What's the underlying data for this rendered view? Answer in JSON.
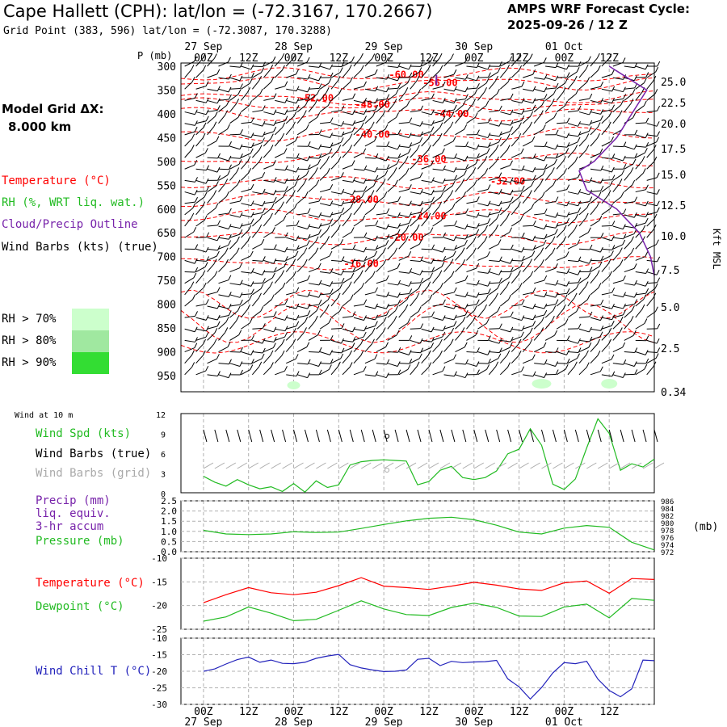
{
  "header": {
    "title": "Cape Hallett (CPH):  lat/lon = (-72.3167, 170.2667)",
    "grid_point": "Grid Point (383, 596) lat/lon = (-72.3087, 170.3288)",
    "cycle_label": "AMPS WRF Forecast Cycle:",
    "cycle_value": "2025-09-26 / 12  Z",
    "model_grid_label": "Model Grid ΔX:",
    "model_grid_value": "8.000 km"
  },
  "legend": {
    "temperature": "Temperature (°C)",
    "rh": "RH (%, WRT liq. wat.)",
    "cloud": "Cloud/Precip Outline",
    "wind_barbs": "Wind Barbs (kts) (true)",
    "rh_levels": [
      {
        "label": "RH > 70%",
        "color": "#ccffcc"
      },
      {
        "label": "RH > 80%",
        "color": "#a0e8a0"
      },
      {
        "label": "RH > 90%",
        "color": "#33dd33"
      }
    ]
  },
  "colors": {
    "temperature": "#ff0000",
    "rh": "#22bb22",
    "cloud": "#7722aa",
    "wind": "#000000",
    "wind_grid": "#aaaaaa",
    "precip": "#7722aa",
    "pressure": "#22bb22",
    "dewpoint": "#22bb22",
    "windchill": "#2222bb",
    "grid": "#b0b0b0"
  },
  "time_axis": {
    "tick_labels": [
      "00Z",
      "12Z",
      "00Z",
      "12Z",
      "00Z",
      "12Z",
      "00Z",
      "12Z",
      "00Z",
      "12Z"
    ],
    "date_labels": [
      "27 Sep",
      "28 Sep",
      "29 Sep",
      "30 Sep",
      "01 Oct"
    ]
  },
  "chart_data": [
    {
      "type": "line",
      "panel": "cross-section",
      "title": "",
      "ylabel": "P (mb)",
      "y2label": "Kft MSL",
      "pressure_ticks": [
        "300",
        "350",
        "400",
        "450",
        "500",
        "550",
        "600",
        "650",
        "700",
        "750",
        "800",
        "850",
        "900",
        "950"
      ],
      "pressure_values": [
        300,
        350,
        400,
        450,
        500,
        550,
        600,
        650,
        700,
        750,
        800,
        850,
        900,
        950
      ],
      "kft_ticks": [
        "25.0",
        "22.5",
        "20.0",
        "17.5",
        "15.0",
        "12.5",
        "10.0",
        "7.5",
        "5.0",
        "2.5",
        "0.34"
      ],
      "kft_values": [
        25.0,
        22.5,
        20.0,
        17.5,
        15.0,
        12.5,
        10.0,
        7.5,
        5.0,
        2.5,
        0.34
      ],
      "isotherm_labels": [
        {
          "label": "-60.00",
          "value": -60,
          "hour": 18,
          "p": 318
        },
        {
          "label": "-56.00",
          "value": -56,
          "hour": 27,
          "p": 335
        },
        {
          "label": "-52.00",
          "value": -52,
          "hour": -6,
          "p": 367
        },
        {
          "label": "-48.00",
          "value": -48,
          "hour": 9,
          "p": 381
        },
        {
          "label": "-44.00",
          "value": -44,
          "hour": 30,
          "p": 400
        },
        {
          "label": "-40.00",
          "value": -40,
          "hour": 9,
          "p": 443
        },
        {
          "label": "-36.00",
          "value": -36,
          "hour": 24,
          "p": 495
        },
        {
          "label": "-32.00",
          "value": -32,
          "hour": 45,
          "p": 542
        },
        {
          "label": "-28.00",
          "value": -28,
          "hour": 6,
          "p": 580
        },
        {
          "label": "-24.00",
          "value": -24,
          "hour": 24,
          "p": 615
        },
        {
          "label": "-20.00",
          "value": -20,
          "hour": 18,
          "p": 660
        },
        {
          "label": "-16.00",
          "value": -16,
          "hour": 6,
          "p": 715
        }
      ]
    },
    {
      "type": "line",
      "panel": "wind",
      "label_top": "Wind at 10 m",
      "legend": [
        "Wind Spd (kts)",
        "Wind Barbs (true)",
        "Wind Barbs (grid)"
      ],
      "yticks": [
        "12",
        "9",
        "6",
        "3",
        "0"
      ],
      "ylim": [
        0,
        12
      ],
      "x_hours": [
        -36,
        -33,
        -30,
        -27,
        -24,
        -21,
        -18,
        -15,
        -12,
        -9,
        -6,
        -3,
        0,
        3,
        6,
        9,
        12,
        15,
        18,
        21,
        24,
        27,
        30,
        33,
        36,
        39,
        42,
        45,
        48,
        51,
        54,
        57,
        60,
        63,
        66,
        69,
        72,
        75,
        78,
        81,
        84
      ],
      "series": [
        {
          "name": "Wind Spd (kts)",
          "values": [
            2.5,
            1.6,
            1.0,
            2.0,
            1.2,
            0.6,
            0.9,
            0.2,
            1.4,
            0.1,
            1.8,
            0.8,
            1.2,
            4.2,
            4.7,
            4.9,
            5.0,
            4.9,
            4.8,
            1.2,
            1.7,
            3.4,
            4.0,
            2.3,
            2.0,
            2.3,
            3.3,
            5.9,
            6.6,
            9.7,
            7.2,
            1.3,
            0.5,
            2.1,
            6.8,
            11.2,
            9.0,
            3.4,
            4.4,
            3.9,
            5.1
          ]
        }
      ]
    },
    {
      "type": "line",
      "panel": "precip-pressure",
      "legend": [
        "Precip (mm)",
        "liq. equiv.",
        "3-hr accum",
        "Pressure (mb)"
      ],
      "left_ticks": [
        "2.5",
        "2.0",
        "1.5",
        "1.0",
        "0.5",
        "0.0"
      ],
      "ylim": [
        0,
        2.5
      ],
      "right_ticks": [
        "986",
        "984",
        "982",
        "980",
        "978",
        "976",
        "974",
        "972"
      ],
      "ylim_right": [
        972,
        986
      ],
      "right_label": "(mb)",
      "x_hours": [
        -36,
        -30,
        -24,
        -18,
        -12,
        -6,
        0,
        6,
        12,
        18,
        24,
        30,
        36,
        42,
        48,
        54,
        60,
        66,
        72,
        78,
        84
      ],
      "series": [
        {
          "name": "Pressure (mb)",
          "axis": "right",
          "values": [
            977.9,
            976.9,
            976.7,
            976.9,
            977.5,
            977.3,
            977.4,
            978.4,
            979.5,
            980.5,
            981.2,
            981.5,
            980.8,
            979.3,
            977.4,
            976.9,
            978.5,
            979.2,
            978.7,
            974.6,
            972.5
          ]
        },
        {
          "name": "Precip (mm)",
          "axis": "left",
          "values": [
            0,
            0,
            0,
            0,
            0,
            0,
            0,
            0,
            0,
            0,
            0,
            0,
            0,
            0,
            0,
            0,
            0,
            0,
            0,
            0,
            0
          ]
        }
      ]
    },
    {
      "type": "line",
      "panel": "temperature-dewpoint",
      "legend": [
        "Temperature (°C)",
        "Dewpoint (°C)"
      ],
      "yticks": [
        "-10",
        "-15",
        "-20",
        "-25"
      ],
      "ylim": [
        -25,
        -10
      ],
      "x_hours": [
        -36,
        -30,
        -24,
        -18,
        -12,
        -6,
        0,
        6,
        12,
        18,
        24,
        30,
        36,
        42,
        48,
        54,
        60,
        66,
        72,
        78,
        84
      ],
      "series": [
        {
          "name": "Temperature (°C)",
          "values": [
            -19.4,
            -17.7,
            -16.2,
            -17.3,
            -17.7,
            -17.2,
            -15.8,
            -14.1,
            -15.9,
            -16.2,
            -16.6,
            -15.9,
            -15.1,
            -15.7,
            -16.5,
            -16.8,
            -15.2,
            -14.8,
            -17.4,
            -14.3,
            -14.5
          ]
        },
        {
          "name": "Dewpoint (°C)",
          "values": [
            -23.3,
            -22.4,
            -20.3,
            -21.6,
            -23.2,
            -22.9,
            -21.0,
            -19.0,
            -20.7,
            -21.9,
            -22.1,
            -20.4,
            -19.5,
            -20.4,
            -22.2,
            -22.3,
            -20.3,
            -19.7,
            -22.6,
            -18.5,
            -18.9
          ]
        }
      ]
    },
    {
      "type": "line",
      "panel": "wind-chill",
      "legend": [
        "Wind Chill T (°C)"
      ],
      "yticks": [
        "-10",
        "-15",
        "-20",
        "-25",
        "-30"
      ],
      "ylim": [
        -30,
        -10
      ],
      "x_hours": [
        -36,
        -33,
        -30,
        -27,
        -24,
        -21,
        -18,
        -15,
        -12,
        -9,
        -6,
        -3,
        0,
        3,
        6,
        9,
        12,
        15,
        18,
        21,
        24,
        27,
        30,
        33,
        36,
        39,
        42,
        45,
        48,
        51,
        54,
        57,
        60,
        63,
        66,
        69,
        72,
        75,
        78,
        81,
        84
      ],
      "series": [
        {
          "name": "Wind Chill T (°C)",
          "values": [
            -20.0,
            -19.3,
            -17.8,
            -16.5,
            -15.7,
            -17.3,
            -16.6,
            -17.6,
            -17.7,
            -17.3,
            -16.1,
            -15.4,
            -14.9,
            -18.0,
            -19.0,
            -19.6,
            -20.1,
            -20.0,
            -19.6,
            -16.4,
            -16.1,
            -18.3,
            -17.0,
            -17.4,
            -17.2,
            -17.1,
            -16.7,
            -22.3,
            -24.7,
            -28.4,
            -24.9,
            -20.5,
            -17.4,
            -17.7,
            -17.0,
            -22.4,
            -25.8,
            -27.7,
            -25.3,
            -16.6,
            -16.8
          ]
        }
      ]
    }
  ]
}
